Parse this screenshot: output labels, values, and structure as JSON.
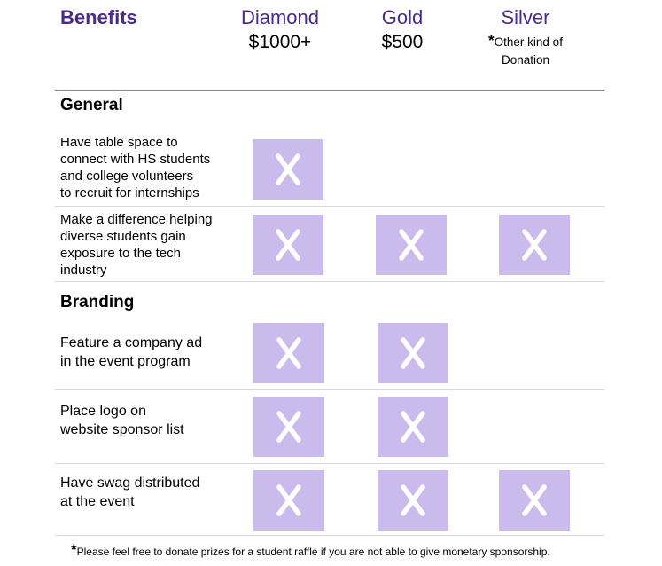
{
  "header": {
    "benefits": "Benefits",
    "tiers": [
      {
        "name": "Diamond",
        "price": "$1000+"
      },
      {
        "name": "Gold",
        "price": "$500"
      },
      {
        "name": "Silver",
        "note_star": "*",
        "note_1": "Other kind of",
        "note_2": "Donation"
      }
    ]
  },
  "sections": [
    {
      "title": "General",
      "rows": [
        {
          "lines": [
            "Have table space to",
            "connect with HS students",
            "and college volunteers",
            "to recruit for internships"
          ],
          "diamond": true,
          "gold": false,
          "silver": false
        },
        {
          "lines": [
            "Make a difference helping",
            "diverse students gain",
            "exposure to the tech",
            "industry"
          ],
          "diamond": true,
          "gold": true,
          "silver": true
        }
      ]
    },
    {
      "title": "Branding",
      "rows": [
        {
          "lines": [
            "Feature a company ad",
            "in the event program"
          ],
          "diamond": true,
          "gold": true,
          "silver": false
        },
        {
          "lines": [
            "Place logo on",
            "website sponsor list"
          ],
          "diamond": true,
          "gold": true,
          "silver": false
        },
        {
          "lines": [
            "Have swag distributed",
            "at the event"
          ],
          "diamond": true,
          "gold": true,
          "silver": true
        }
      ]
    }
  ],
  "mark": "X",
  "footnote": {
    "star": "*",
    "text": "Please feel free to donate prizes for a student raffle if you are not able to give monetary sponsorship."
  },
  "colors": {
    "header": "#4a2a8a",
    "box": "#cbbbec",
    "mark": "#ffffff"
  }
}
